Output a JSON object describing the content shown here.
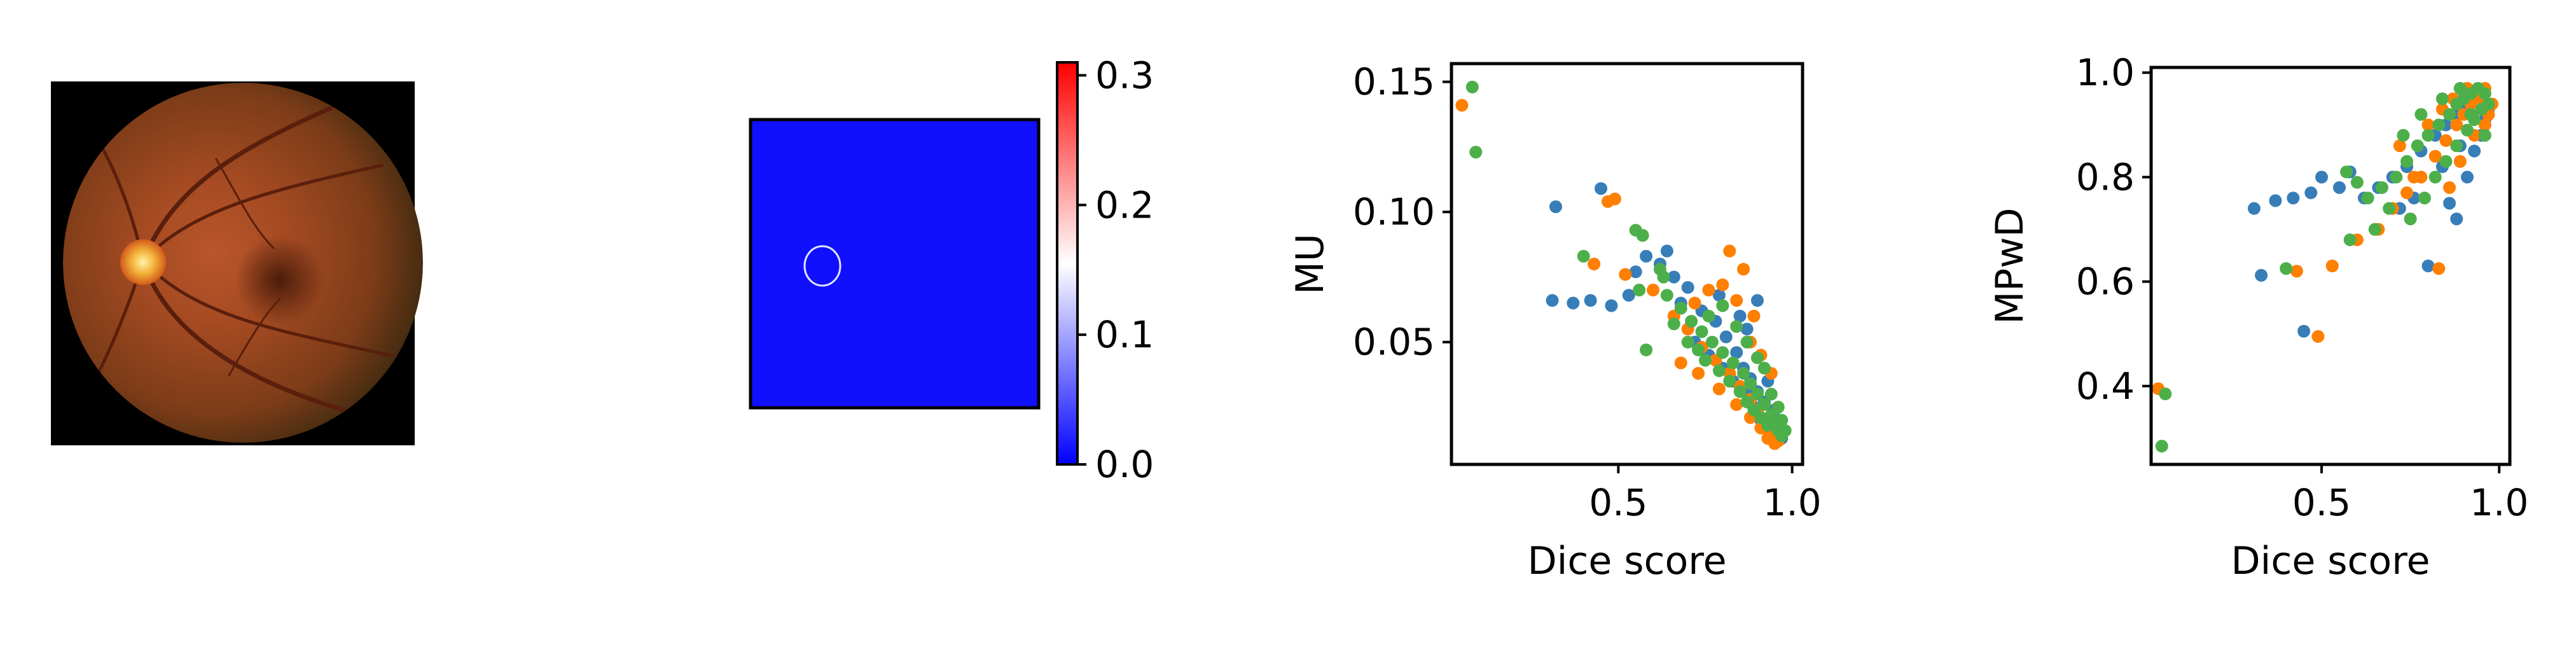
{
  "colors": {
    "series1": "#377eb8",
    "series2": "#ff7f00",
    "series3": "#4daf4a",
    "map_background": "#1010ff",
    "fundus_dark": "#000000"
  },
  "fundus_image": {
    "description_icon": "retina-fundus-image"
  },
  "heatmap": {
    "colorbar": {
      "colormap": "bwr",
      "range": [
        0.0,
        0.31
      ],
      "ticks": [
        {
          "value": 0.0,
          "label": "0.0"
        },
        {
          "value": 0.1,
          "label": "0.1"
        },
        {
          "value": 0.2,
          "label": "0.2"
        },
        {
          "value": 0.3,
          "label": "0.3"
        }
      ]
    }
  },
  "chart_data": [
    {
      "type": "scatter",
      "xlabel": "Dice score",
      "ylabel": "MU",
      "xlim": [
        0.02,
        1.03
      ],
      "ylim": [
        0.003,
        0.157
      ],
      "xticks": [
        {
          "value": 0.5,
          "label": "0.5"
        },
        {
          "value": 1.0,
          "label": "1.0"
        }
      ],
      "yticks": [
        {
          "value": 0.05,
          "label": "0.05"
        },
        {
          "value": 0.1,
          "label": "0.10"
        },
        {
          "value": 0.15,
          "label": "0.15"
        }
      ],
      "series": [
        {
          "color": "#377eb8",
          "points": [
            [
              0.32,
              0.102
            ],
            [
              0.45,
              0.109
            ],
            [
              0.31,
              0.066
            ],
            [
              0.37,
              0.065
            ],
            [
              0.42,
              0.066
            ],
            [
              0.48,
              0.064
            ],
            [
              0.53,
              0.068
            ],
            [
              0.58,
              0.083
            ],
            [
              0.62,
              0.08
            ],
            [
              0.66,
              0.075
            ],
            [
              0.7,
              0.071
            ],
            [
              0.74,
              0.062
            ],
            [
              0.78,
              0.058
            ],
            [
              0.81,
              0.052
            ],
            [
              0.84,
              0.046
            ],
            [
              0.86,
              0.04
            ],
            [
              0.88,
              0.036
            ],
            [
              0.9,
              0.031
            ],
            [
              0.92,
              0.027
            ],
            [
              0.94,
              0.022
            ],
            [
              0.95,
              0.019
            ],
            [
              0.72,
              0.05
            ],
            [
              0.76,
              0.045
            ],
            [
              0.8,
              0.04
            ],
            [
              0.83,
              0.035
            ],
            [
              0.87,
              0.03
            ],
            [
              0.89,
              0.025
            ],
            [
              0.91,
              0.02
            ],
            [
              0.93,
              0.017
            ],
            [
              0.96,
              0.015
            ],
            [
              0.97,
              0.013
            ],
            [
              0.9,
              0.066
            ],
            [
              0.85,
              0.06
            ],
            [
              0.64,
              0.085
            ],
            [
              0.55,
              0.077
            ],
            [
              0.68,
              0.065
            ],
            [
              0.79,
              0.068
            ],
            [
              0.87,
              0.055
            ],
            [
              0.93,
              0.035
            ],
            [
              0.95,
              0.024
            ]
          ]
        },
        {
          "color": "#ff7f00",
          "points": [
            [
              0.05,
              0.141
            ],
            [
              0.47,
              0.104
            ],
            [
              0.49,
              0.105
            ],
            [
              0.43,
              0.08
            ],
            [
              0.52,
              0.076
            ],
            [
              0.6,
              0.07
            ],
            [
              0.66,
              0.06
            ],
            [
              0.7,
              0.055
            ],
            [
              0.74,
              0.048
            ],
            [
              0.78,
              0.043
            ],
            [
              0.82,
              0.038
            ],
            [
              0.85,
              0.033
            ],
            [
              0.88,
              0.028
            ],
            [
              0.9,
              0.024
            ],
            [
              0.92,
              0.02
            ],
            [
              0.94,
              0.016
            ],
            [
              0.96,
              0.012
            ],
            [
              0.82,
              0.085
            ],
            [
              0.86,
              0.078
            ],
            [
              0.8,
              0.072
            ],
            [
              0.76,
              0.07
            ],
            [
              0.84,
              0.066
            ],
            [
              0.89,
              0.06
            ],
            [
              0.68,
              0.042
            ],
            [
              0.73,
              0.038
            ],
            [
              0.79,
              0.032
            ],
            [
              0.84,
              0.026
            ],
            [
              0.88,
              0.021
            ],
            [
              0.91,
              0.017
            ],
            [
              0.93,
              0.013
            ],
            [
              0.95,
              0.011
            ],
            [
              0.72,
              0.065
            ],
            [
              0.88,
              0.05
            ],
            [
              0.91,
              0.045
            ],
            [
              0.94,
              0.038
            ]
          ]
        },
        {
          "color": "#4daf4a",
          "points": [
            [
              0.08,
              0.148
            ],
            [
              0.09,
              0.123
            ],
            [
              0.4,
              0.083
            ],
            [
              0.55,
              0.093
            ],
            [
              0.57,
              0.091
            ],
            [
              0.62,
              0.078
            ],
            [
              0.56,
              0.07
            ],
            [
              0.58,
              0.047
            ],
            [
              0.64,
              0.068
            ],
            [
              0.68,
              0.063
            ],
            [
              0.71,
              0.058
            ],
            [
              0.74,
              0.054
            ],
            [
              0.77,
              0.05
            ],
            [
              0.8,
              0.046
            ],
            [
              0.83,
              0.042
            ],
            [
              0.86,
              0.038
            ],
            [
              0.88,
              0.034
            ],
            [
              0.9,
              0.03
            ],
            [
              0.92,
              0.026
            ],
            [
              0.94,
              0.022
            ],
            [
              0.95,
              0.019
            ],
            [
              0.96,
              0.016
            ],
            [
              0.97,
              0.014
            ],
            [
              0.75,
              0.043
            ],
            [
              0.79,
              0.039
            ],
            [
              0.82,
              0.035
            ],
            [
              0.85,
              0.031
            ],
            [
              0.87,
              0.027
            ],
            [
              0.89,
              0.024
            ],
            [
              0.91,
              0.021
            ],
            [
              0.93,
              0.018
            ],
            [
              0.8,
              0.064
            ],
            [
              0.84,
              0.056
            ],
            [
              0.87,
              0.05
            ],
            [
              0.9,
              0.044
            ],
            [
              0.92,
              0.04
            ],
            [
              0.94,
              0.03
            ],
            [
              0.63,
              0.075
            ],
            [
              0.66,
              0.057
            ],
            [
              0.7,
              0.05
            ],
            [
              0.73,
              0.047
            ],
            [
              0.76,
              0.06
            ],
            [
              0.96,
              0.025
            ],
            [
              0.97,
              0.02
            ],
            [
              0.98,
              0.016
            ]
          ]
        }
      ]
    },
    {
      "type": "scatter",
      "xlabel": "Dice score",
      "ylabel": "MPwD",
      "xlim": [
        0.02,
        1.03
      ],
      "ylim": [
        0.25,
        1.01
      ],
      "xticks": [
        {
          "value": 0.5,
          "label": "0.5"
        },
        {
          "value": 1.0,
          "label": "1.0"
        }
      ],
      "yticks": [
        {
          "value": 0.4,
          "label": "0.4"
        },
        {
          "value": 0.6,
          "label": "0.6"
        },
        {
          "value": 0.8,
          "label": "0.8"
        },
        {
          "value": 1.0,
          "label": "1.0"
        }
      ],
      "series": [
        {
          "color": "#377eb8",
          "points": [
            [
              0.31,
              0.74
            ],
            [
              0.37,
              0.755
            ],
            [
              0.42,
              0.76
            ],
            [
              0.47,
              0.77
            ],
            [
              0.33,
              0.612
            ],
            [
              0.45,
              0.505
            ],
            [
              0.5,
              0.8
            ],
            [
              0.55,
              0.78
            ],
            [
              0.58,
              0.81
            ],
            [
              0.62,
              0.76
            ],
            [
              0.66,
              0.78
            ],
            [
              0.7,
              0.8
            ],
            [
              0.74,
              0.82
            ],
            [
              0.78,
              0.85
            ],
            [
              0.82,
              0.88
            ],
            [
              0.85,
              0.9
            ],
            [
              0.88,
              0.92
            ],
            [
              0.9,
              0.94
            ],
            [
              0.92,
              0.95
            ],
            [
              0.94,
              0.96
            ],
            [
              0.8,
              0.63
            ],
            [
              0.86,
              0.75
            ],
            [
              0.88,
              0.72
            ],
            [
              0.91,
              0.8
            ],
            [
              0.93,
              0.85
            ],
            [
              0.95,
              0.88
            ],
            [
              0.96,
              0.91
            ],
            [
              0.97,
              0.93
            ],
            [
              0.72,
              0.74
            ],
            [
              0.76,
              0.76
            ],
            [
              0.84,
              0.82
            ],
            [
              0.89,
              0.86
            ]
          ]
        },
        {
          "color": "#ff7f00",
          "points": [
            [
              0.04,
              0.395
            ],
            [
              0.49,
              0.495
            ],
            [
              0.43,
              0.62
            ],
            [
              0.53,
              0.63
            ],
            [
              0.6,
              0.68
            ],
            [
              0.66,
              0.7
            ],
            [
              0.7,
              0.74
            ],
            [
              0.74,
              0.77
            ],
            [
              0.78,
              0.8
            ],
            [
              0.82,
              0.84
            ],
            [
              0.85,
              0.87
            ],
            [
              0.88,
              0.9
            ],
            [
              0.9,
              0.92
            ],
            [
              0.92,
              0.94
            ],
            [
              0.94,
              0.96
            ],
            [
              0.96,
              0.97
            ],
            [
              0.83,
              0.625
            ],
            [
              0.8,
              0.9
            ],
            [
              0.84,
              0.93
            ],
            [
              0.87,
              0.95
            ],
            [
              0.91,
              0.97
            ],
            [
              0.95,
              0.95
            ],
            [
              0.97,
              0.92
            ],
            [
              0.72,
              0.86
            ],
            [
              0.76,
              0.8
            ],
            [
              0.86,
              0.78
            ],
            [
              0.89,
              0.83
            ],
            [
              0.93,
              0.88
            ],
            [
              0.96,
              0.9
            ],
            [
              0.98,
              0.94
            ]
          ]
        },
        {
          "color": "#4daf4a",
          "points": [
            [
              0.06,
              0.385
            ],
            [
              0.05,
              0.285
            ],
            [
              0.4,
              0.625
            ],
            [
              0.57,
              0.81
            ],
            [
              0.6,
              0.79
            ],
            [
              0.63,
              0.76
            ],
            [
              0.67,
              0.78
            ],
            [
              0.71,
              0.8
            ],
            [
              0.74,
              0.83
            ],
            [
              0.77,
              0.86
            ],
            [
              0.8,
              0.88
            ],
            [
              0.83,
              0.9
            ],
            [
              0.86,
              0.92
            ],
            [
              0.88,
              0.94
            ],
            [
              0.9,
              0.95
            ],
            [
              0.92,
              0.96
            ],
            [
              0.94,
              0.97
            ],
            [
              0.96,
              0.96
            ],
            [
              0.97,
              0.94
            ],
            [
              0.75,
              0.72
            ],
            [
              0.79,
              0.76
            ],
            [
              0.82,
              0.8
            ],
            [
              0.85,
              0.83
            ],
            [
              0.88,
              0.86
            ],
            [
              0.91,
              0.89
            ],
            [
              0.93,
              0.91
            ],
            [
              0.95,
              0.93
            ],
            [
              0.58,
              0.68
            ],
            [
              0.65,
              0.7
            ],
            [
              0.69,
              0.74
            ],
            [
              0.73,
              0.88
            ],
            [
              0.78,
              0.92
            ],
            [
              0.84,
              0.95
            ],
            [
              0.89,
              0.97
            ],
            [
              0.92,
              0.92
            ],
            [
              0.96,
              0.88
            ]
          ]
        }
      ]
    }
  ]
}
